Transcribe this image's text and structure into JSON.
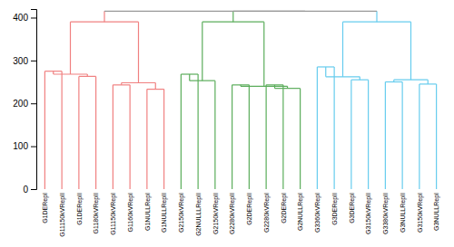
{
  "chart_data": {
    "type": "dendrogram",
    "categories": [
      "G1DERepI",
      "G11150kVRepII",
      "G1DERepII",
      "G1180kVRepII",
      "G11150kVRepI",
      "G1160kVRepI",
      "G1NULLRepI",
      "G1NULLRepII",
      "G2150kVRepI",
      "G2NULLLRepII",
      "G2150kVRepII",
      "G2280kVRepII",
      "G2DERepII",
      "G2280kVRepI",
      "G2DERepI",
      "G2NULLRepI",
      "G3360kVRepI",
      "G3DERepII",
      "G3DERepI",
      "G3150kVRepII",
      "G3380kVRepII",
      "G3NULLRepII",
      "G3150kVRepI",
      "G3NULLRepI"
    ],
    "tree": {
      "color": "#999999",
      "height": 415,
      "children": [
        {
          "color": "#F08080",
          "height": 390,
          "children": [
            {
              "height": 268,
              "children": [
                {
                  "height": 275,
                  "children": [
                    0,
                    1
                  ]
                },
                {
                  "height": 263,
                  "children": [
                    2,
                    3
                  ]
                }
              ]
            },
            {
              "height": 248,
              "children": [
                {
                  "height": 243,
                  "children": [
                    4,
                    5
                  ]
                },
                {
                  "height": 233,
                  "children": [
                    6,
                    7
                  ]
                }
              ]
            }
          ]
        },
        {
          "color": "#999999",
          "height": 415,
          "children": [
            {
              "color": "#5BAD5B",
              "height": 390,
              "children": [
                {
                  "height": 253,
                  "children": [
                    {
                      "height": 268,
                      "children": [
                        8,
                        9
                      ]
                    },
                    10
                  ]
                },
                {
                  "height": 240,
                  "children": [
                    {
                      "height": 243,
                      "children": [
                        11,
                        12
                      ]
                    },
                    {
                      "height": 235,
                      "children": [
                        {
                          "height": 243,
                          "children": [
                            13,
                            14
                          ]
                        },
                        15
                      ]
                    }
                  ]
                }
              ]
            },
            {
              "color": "#66CCEE",
              "height": 390,
              "children": [
                {
                  "height": 262,
                  "children": [
                    {
                      "height": 285,
                      "children": [
                        16,
                        17
                      ]
                    },
                    {
                      "height": 255,
                      "children": [
                        18,
                        19
                      ]
                    }
                  ]
                },
                {
                  "height": 255,
                  "children": [
                    {
                      "height": 250,
                      "children": [
                        20,
                        21
                      ]
                    },
                    {
                      "height": 245,
                      "children": [
                        22,
                        23
                      ]
                    }
                  ]
                }
              ]
            }
          ]
        }
      ]
    },
    "ylim": [
      0,
      420
    ],
    "yticks": [
      0,
      100,
      200,
      300,
      400
    ],
    "grid": false
  }
}
